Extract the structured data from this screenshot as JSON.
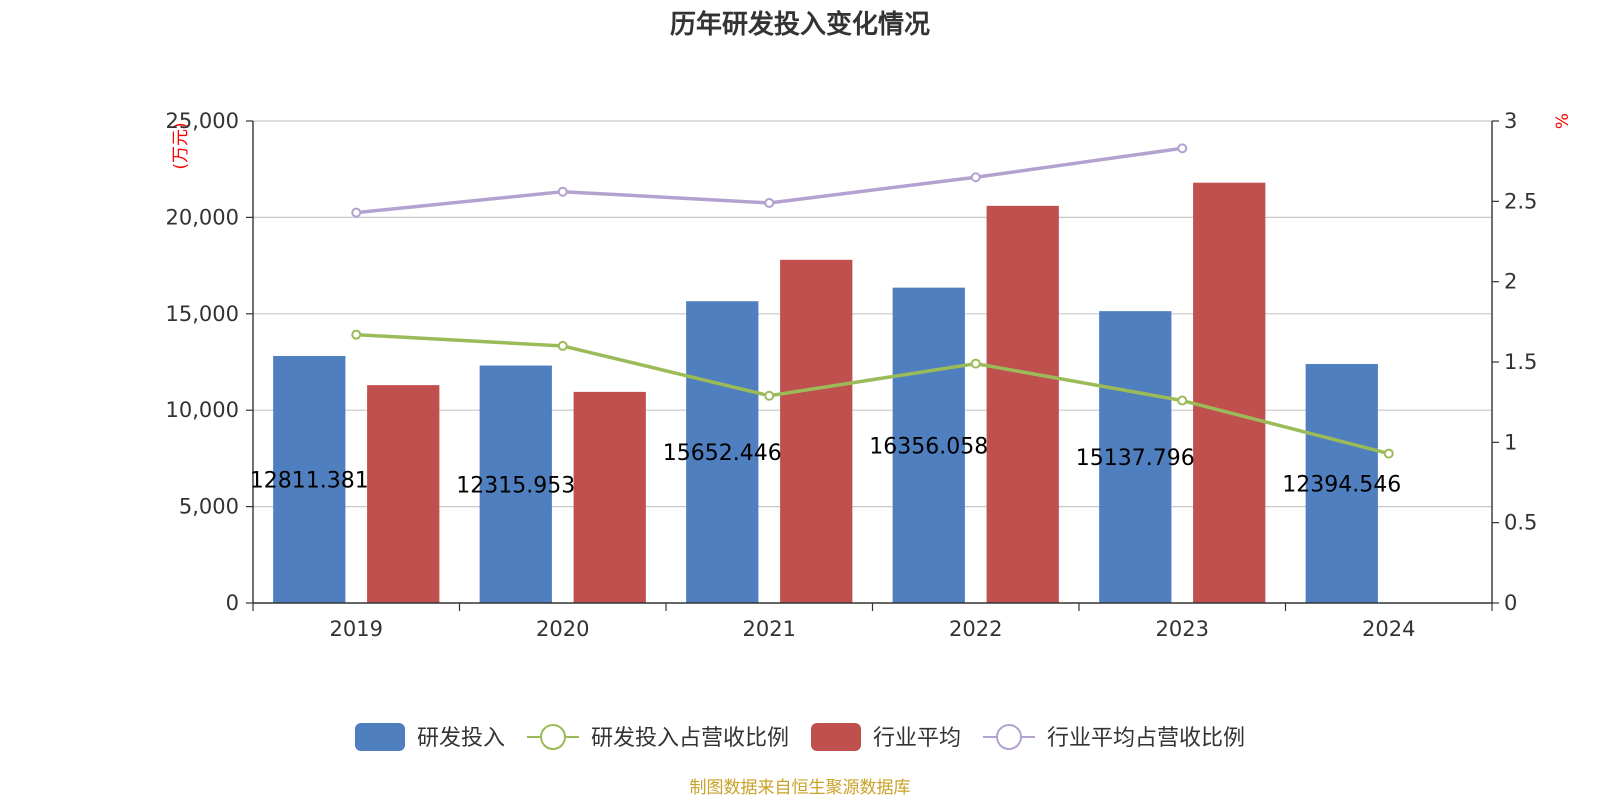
{
  "chart_data": {
    "type": "bar",
    "title": "历年研发投入变化情况",
    "categories": [
      "2019",
      "2020",
      "2021",
      "2022",
      "2023",
      "2024"
    ],
    "y_left": {
      "unit": "(万元)",
      "ylim": [
        0,
        25000
      ],
      "ticks": [
        "0",
        "5,000",
        "10,000",
        "15,000",
        "20,000",
        "25,000"
      ]
    },
    "y_right": {
      "unit": "%",
      "ylim": [
        0,
        3
      ],
      "ticks": [
        "0",
        "0.5",
        "1",
        "1.5",
        "2",
        "2.5",
        "3"
      ]
    },
    "series": [
      {
        "name": "研发投入",
        "type": "bar",
        "axis": "left",
        "color": "#4f7fbf",
        "values": [
          12811.381,
          12315.953,
          15652.446,
          16356.058,
          15137.796,
          12394.546
        ],
        "labels": [
          "12811.381",
          "12315.953",
          "15652.446",
          "16356.058",
          "15137.796",
          "12394.546"
        ]
      },
      {
        "name": "研发投入占营收比例",
        "type": "line",
        "axis": "right",
        "color": "#9bbb59",
        "values": [
          1.67,
          1.6,
          1.29,
          1.49,
          1.26,
          0.93
        ]
      },
      {
        "name": "行业平均",
        "type": "bar",
        "axis": "left",
        "color": "#c0504d",
        "values": [
          11300,
          10950,
          17800,
          20600,
          21800,
          null
        ]
      },
      {
        "name": "行业平均占营收比例",
        "type": "line",
        "axis": "right",
        "color": "#b3a2cf",
        "values": [
          2.43,
          2.56,
          2.49,
          2.65,
          2.83,
          null
        ]
      }
    ],
    "grid": true,
    "legend_position": "bottom-center"
  },
  "source_note": "制图数据来自恒生聚源数据库"
}
